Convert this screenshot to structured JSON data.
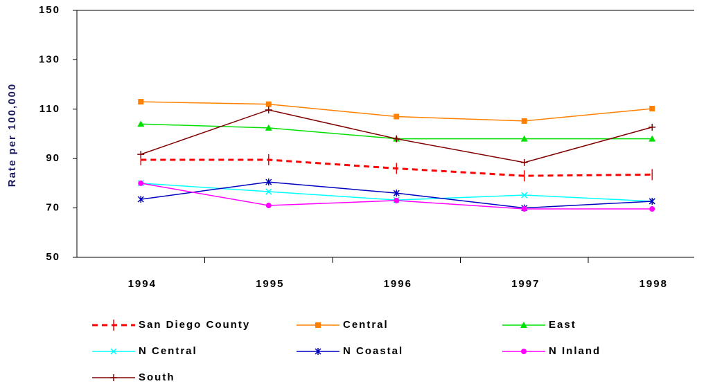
{
  "chart_data": {
    "type": "line",
    "y_label": "Rate per 100,000",
    "categories": [
      "1994",
      "1995",
      "1996",
      "1997",
      "1998"
    ],
    "ylim": [
      50,
      150
    ],
    "yticks": [
      50,
      70,
      90,
      110,
      130,
      150
    ],
    "series": [
      {
        "name": "San Diego County",
        "color": "#ff0000",
        "marker": "tick",
        "dash": true,
        "values": [
          89.5,
          89.5,
          86,
          83,
          83.5
        ]
      },
      {
        "name": "Central",
        "color": "#ff8000",
        "marker": "square",
        "values": [
          113,
          112,
          107,
          105.2,
          110.2
        ]
      },
      {
        "name": "East",
        "color": "#00e000",
        "marker": "triangle",
        "values": [
          104,
          102.4,
          98,
          98,
          98
        ]
      },
      {
        "name": "N Central",
        "color": "#00ffff",
        "marker": "x",
        "values": [
          80,
          76.6,
          73.2,
          75.2,
          72.7
        ]
      },
      {
        "name": "N Coastal",
        "color": "#0000c0",
        "marker": "asterisk",
        "values": [
          73.5,
          80.5,
          76,
          70,
          72.7
        ]
      },
      {
        "name": "N Inland",
        "color": "#ff00ff",
        "marker": "circle",
        "values": [
          80,
          71,
          73,
          69.6,
          69.6
        ]
      },
      {
        "name": "South",
        "color": "#800000",
        "marker": "plus",
        "values": [
          91.7,
          109.7,
          98,
          88.4,
          102.7
        ]
      }
    ]
  }
}
